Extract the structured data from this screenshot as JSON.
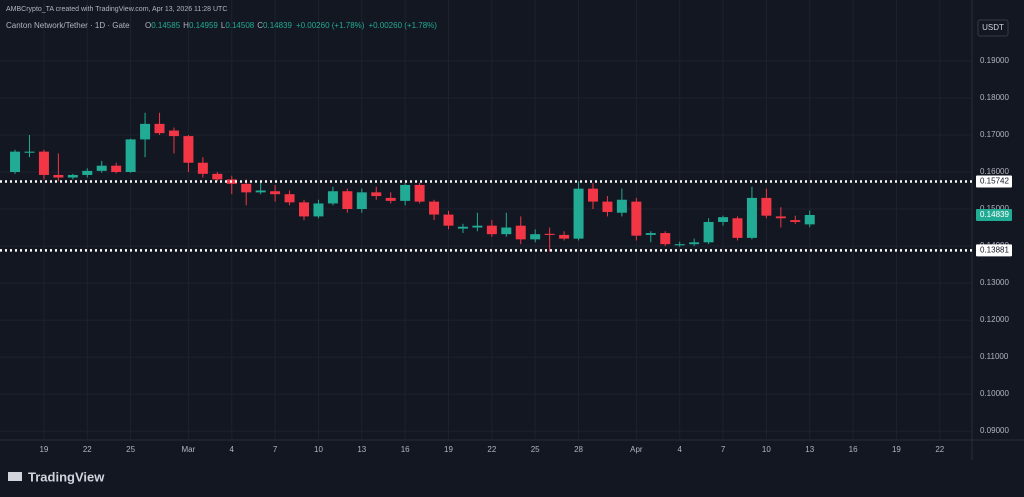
{
  "header": {
    "watermark": "AMBCrypto_TA created with TradingView.com, Apr 13, 2026 11:28 UTC",
    "symbol": "Canton Network/Tether · 1D · Gate",
    "o_label": "O",
    "h_label": "H",
    "l_label": "L",
    "c_label": "C",
    "change": "+0.00260 (+1.78%)",
    "change2": "+0.00260 (+1.78%)",
    "currency": "USDT"
  },
  "footer": {
    "brand": "TradingView"
  },
  "chart_data": {
    "type": "candlestick",
    "open": [
      0.16,
      0.1652,
      0.1655,
      0.1592,
      0.1585,
      0.1592,
      0.1603,
      0.1617,
      0.16,
      0.1688,
      0.173,
      0.1712,
      0.1697,
      0.1625,
      0.1595,
      0.158,
      0.1568,
      0.1545,
      0.1548,
      0.154,
      0.1518,
      0.148,
      0.1515,
      0.1548,
      0.15,
      0.1545,
      0.153,
      0.1522,
      0.1565,
      0.152,
      0.1485,
      0.1447,
      0.145,
      0.1455,
      0.1432,
      0.1455,
      0.1418,
      0.1433,
      0.143,
      0.142,
      0.1555,
      0.152,
      0.149,
      0.152,
      0.143,
      0.1435,
      0.1402,
      0.1405,
      0.141,
      0.1465,
      0.1475,
      0.1422,
      0.153,
      0.148,
      0.147,
      0.14585
    ],
    "high": [
      0.166,
      0.17,
      0.166,
      0.165,
      0.1595,
      0.161,
      0.163,
      0.1625,
      0.169,
      0.176,
      0.176,
      0.172,
      0.17,
      0.164,
      0.16,
      0.159,
      0.158,
      0.1575,
      0.1565,
      0.155,
      0.1525,
      0.1525,
      0.156,
      0.1555,
      0.1555,
      0.156,
      0.1545,
      0.157,
      0.157,
      0.1525,
      0.1495,
      0.146,
      0.149,
      0.147,
      0.149,
      0.148,
      0.1445,
      0.145,
      0.144,
      0.1575,
      0.157,
      0.1535,
      0.1555,
      0.153,
      0.144,
      0.144,
      0.1412,
      0.142,
      0.1475,
      0.1482,
      0.148,
      0.156,
      0.1555,
      0.1505,
      0.1482,
      0.14959
    ],
    "low": [
      0.1595,
      0.164,
      0.158,
      0.1575,
      0.158,
      0.1585,
      0.1598,
      0.1596,
      0.1598,
      0.164,
      0.17,
      0.165,
      0.16,
      0.1585,
      0.1575,
      0.154,
      0.151,
      0.154,
      0.152,
      0.151,
      0.147,
      0.1475,
      0.151,
      0.149,
      0.149,
      0.1525,
      0.1515,
      0.151,
      0.1515,
      0.147,
      0.1445,
      0.1435,
      0.144,
      0.1425,
      0.1425,
      0.1405,
      0.141,
      0.1385,
      0.1415,
      0.1415,
      0.15,
      0.148,
      0.148,
      0.1415,
      0.141,
      0.14,
      0.1398,
      0.14,
      0.1405,
      0.1455,
      0.1415,
      0.1418,
      0.1475,
      0.145,
      0.146,
      0.14508
    ],
    "close": [
      0.1655,
      0.1655,
      0.1592,
      0.1585,
      0.1592,
      0.1603,
      0.1617,
      0.16,
      0.1688,
      0.173,
      0.1705,
      0.1697,
      0.1625,
      0.1595,
      0.158,
      0.1568,
      0.1545,
      0.155,
      0.154,
      0.1518,
      0.148,
      0.1515,
      0.1548,
      0.15,
      0.1545,
      0.1535,
      0.1522,
      0.1565,
      0.152,
      0.1485,
      0.1455,
      0.1452,
      0.1455,
      0.1432,
      0.145,
      0.1418,
      0.1432,
      0.143,
      0.142,
      0.1555,
      0.152,
      0.1492,
      0.1525,
      0.1428,
      0.1435,
      0.1405,
      0.1405,
      0.141,
      0.1465,
      0.1478,
      0.1422,
      0.153,
      0.1482,
      0.1475,
      0.1465,
      0.14839
    ],
    "up_color": "#22ab94",
    "down_color": "#f23645",
    "ylim": [
      0.0876,
      0.2016
    ],
    "yticks": [
      {
        "value": 0.09,
        "label": "0.09000"
      },
      {
        "value": 0.1,
        "label": "0.10000"
      },
      {
        "value": 0.11,
        "label": "0.11000"
      },
      {
        "value": 0.12,
        "label": "0.12000"
      },
      {
        "value": 0.13,
        "label": "0.13000"
      },
      {
        "value": 0.14,
        "label": "0.14000"
      },
      {
        "value": 0.15,
        "label": "0.15000"
      },
      {
        "value": 0.16,
        "label": "0.16000"
      },
      {
        "value": 0.17,
        "label": "0.17000"
      },
      {
        "value": 0.18,
        "label": "0.18000"
      },
      {
        "value": 0.19,
        "label": "0.19000"
      }
    ],
    "xlim": [
      -1.04,
      66.23
    ],
    "xticks": [
      {
        "value": 2,
        "label": "19"
      },
      {
        "value": 5,
        "label": "22"
      },
      {
        "value": 8,
        "label": "25"
      },
      {
        "value": 12,
        "label": "Mar"
      },
      {
        "value": 15,
        "label": "4"
      },
      {
        "value": 18,
        "label": "7"
      },
      {
        "value": 21,
        "label": "10"
      },
      {
        "value": 24,
        "label": "13"
      },
      {
        "value": 27,
        "label": "16"
      },
      {
        "value": 30,
        "label": "19"
      },
      {
        "value": 33,
        "label": "22"
      },
      {
        "value": 36,
        "label": "25"
      },
      {
        "value": 39,
        "label": "28"
      },
      {
        "value": 43,
        "label": "Apr"
      },
      {
        "value": 46,
        "label": "4"
      },
      {
        "value": 49,
        "label": "7"
      },
      {
        "value": 52,
        "label": "10"
      },
      {
        "value": 55,
        "label": "13"
      },
      {
        "value": 58,
        "label": "16"
      },
      {
        "value": 61,
        "label": "19"
      },
      {
        "value": 64,
        "label": "22"
      }
    ],
    "levels": [
      0.15742,
      0.13881
    ],
    "grid": true
  }
}
